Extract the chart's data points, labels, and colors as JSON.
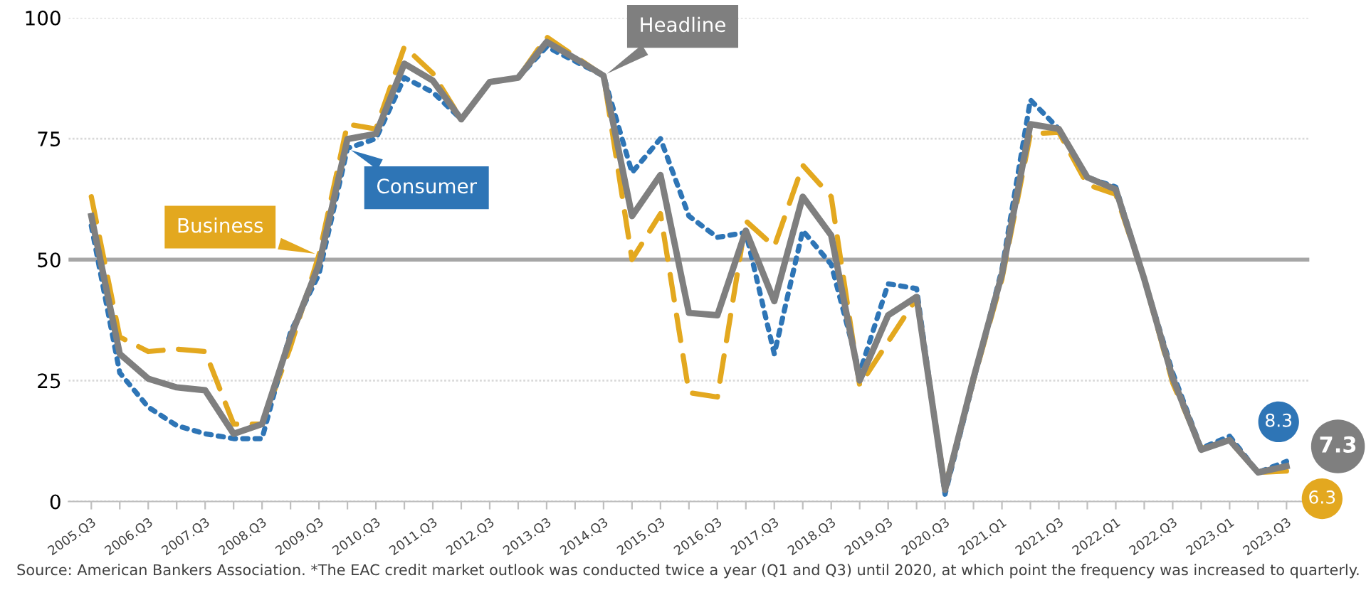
{
  "chart_data": {
    "type": "line",
    "categories": [
      "2005.Q3",
      null,
      "2006.Q3",
      null,
      "2007.Q3",
      null,
      "2008.Q3",
      null,
      "2009.Q3",
      null,
      "2010.Q3",
      null,
      "2011.Q3",
      null,
      "2012.Q3",
      null,
      "2013.Q3",
      null,
      "2014.Q3",
      null,
      "2015.Q3",
      null,
      "2016.Q3",
      null,
      "2017.Q3",
      null,
      "2018.Q3",
      null,
      "2019.Q3",
      null,
      "2020.Q3",
      null,
      "2021.Q1",
      null,
      "2021.Q3",
      null,
      "2022.Q1",
      null,
      "2022.Q3",
      null,
      "2023.Q1",
      null,
      "2023.Q3"
    ],
    "series": [
      {
        "name": "Business",
        "color": "#e3a81f",
        "line_style": "dashed",
        "values": [
          63,
          34,
          31,
          31.5,
          31,
          16,
          16,
          32,
          51,
          78,
          77,
          94,
          88.5,
          79,
          86.7,
          87.6,
          96,
          92,
          88,
          50,
          59.5,
          22.5,
          21.6,
          58,
          52.7,
          69.5,
          63,
          24,
          33,
          42,
          3,
          25,
          46,
          76,
          76.3,
          65.5,
          63.5,
          46,
          24.5,
          11,
          12.5,
          6,
          6.3
        ],
        "value_labels": [
          null,
          null,
          null,
          null,
          null,
          null,
          null,
          null,
          null,
          null,
          null,
          null,
          null,
          null,
          null,
          null,
          null,
          null,
          null,
          null,
          null,
          null,
          null,
          null,
          null,
          null,
          null,
          null,
          null,
          null,
          null,
          null,
          null,
          null,
          null,
          null,
          null,
          null,
          null,
          null,
          null,
          null,
          "6.3"
        ]
      },
      {
        "name": "Consumer",
        "color": "#2e75b6",
        "line_style": "dotted",
        "values": [
          57,
          26.6,
          19.5,
          15.7,
          14,
          13,
          13,
          35,
          47,
          73,
          75,
          87.6,
          84.6,
          79,
          86.7,
          87.6,
          94,
          91,
          88,
          68,
          75,
          59,
          54.6,
          55.6,
          30.5,
          56,
          49,
          26.6,
          45,
          44,
          1.5,
          25,
          48,
          83,
          77,
          67,
          65,
          46,
          26.6,
          11,
          13.5,
          6,
          8.3
        ],
        "value_labels": [
          null,
          null,
          null,
          null,
          null,
          null,
          null,
          null,
          null,
          null,
          null,
          null,
          null,
          null,
          null,
          null,
          null,
          null,
          null,
          null,
          null,
          null,
          null,
          null,
          null,
          null,
          null,
          null,
          null,
          null,
          null,
          null,
          null,
          null,
          null,
          null,
          null,
          null,
          null,
          null,
          null,
          null,
          "8.3"
        ]
      },
      {
        "name": "Headline",
        "color": "#7f7f7f",
        "line_style": "solid",
        "values": [
          59,
          30.5,
          25.4,
          23.6,
          23,
          14,
          16,
          34,
          49,
          74.9,
          76,
          90.5,
          87,
          79,
          86.7,
          87.6,
          95,
          91.6,
          88,
          59,
          67.5,
          39,
          38.5,
          56,
          41.4,
          63,
          55,
          25,
          38.5,
          42.3,
          2.4,
          25.5,
          47,
          78,
          77,
          67,
          64.5,
          46,
          25.5,
          10.7,
          12.7,
          6,
          7.3
        ],
        "value_labels": [
          null,
          null,
          null,
          null,
          null,
          null,
          null,
          null,
          null,
          null,
          null,
          null,
          null,
          null,
          null,
          null,
          null,
          null,
          null,
          null,
          null,
          null,
          null,
          null,
          null,
          null,
          null,
          null,
          null,
          null,
          null,
          null,
          null,
          null,
          null,
          null,
          null,
          null,
          null,
          null,
          null,
          null,
          "7.3"
        ]
      }
    ],
    "ylim": [
      0,
      100
    ],
    "yticks": [
      0,
      25,
      50,
      75,
      100
    ],
    "grid": "y",
    "legend": "left",
    "marker": "none",
    "ref_lines": [
      {
        "axis": "y",
        "value": 50,
        "color": "#a6a6a6",
        "line_style": "solid"
      }
    ],
    "annotations": [
      "Source: American Bankers Association. *The EAC credit market outlook was conducted twice a year (Q1 and Q3) until 2020, at which point the frequency was increased to quarterly."
    ]
  }
}
